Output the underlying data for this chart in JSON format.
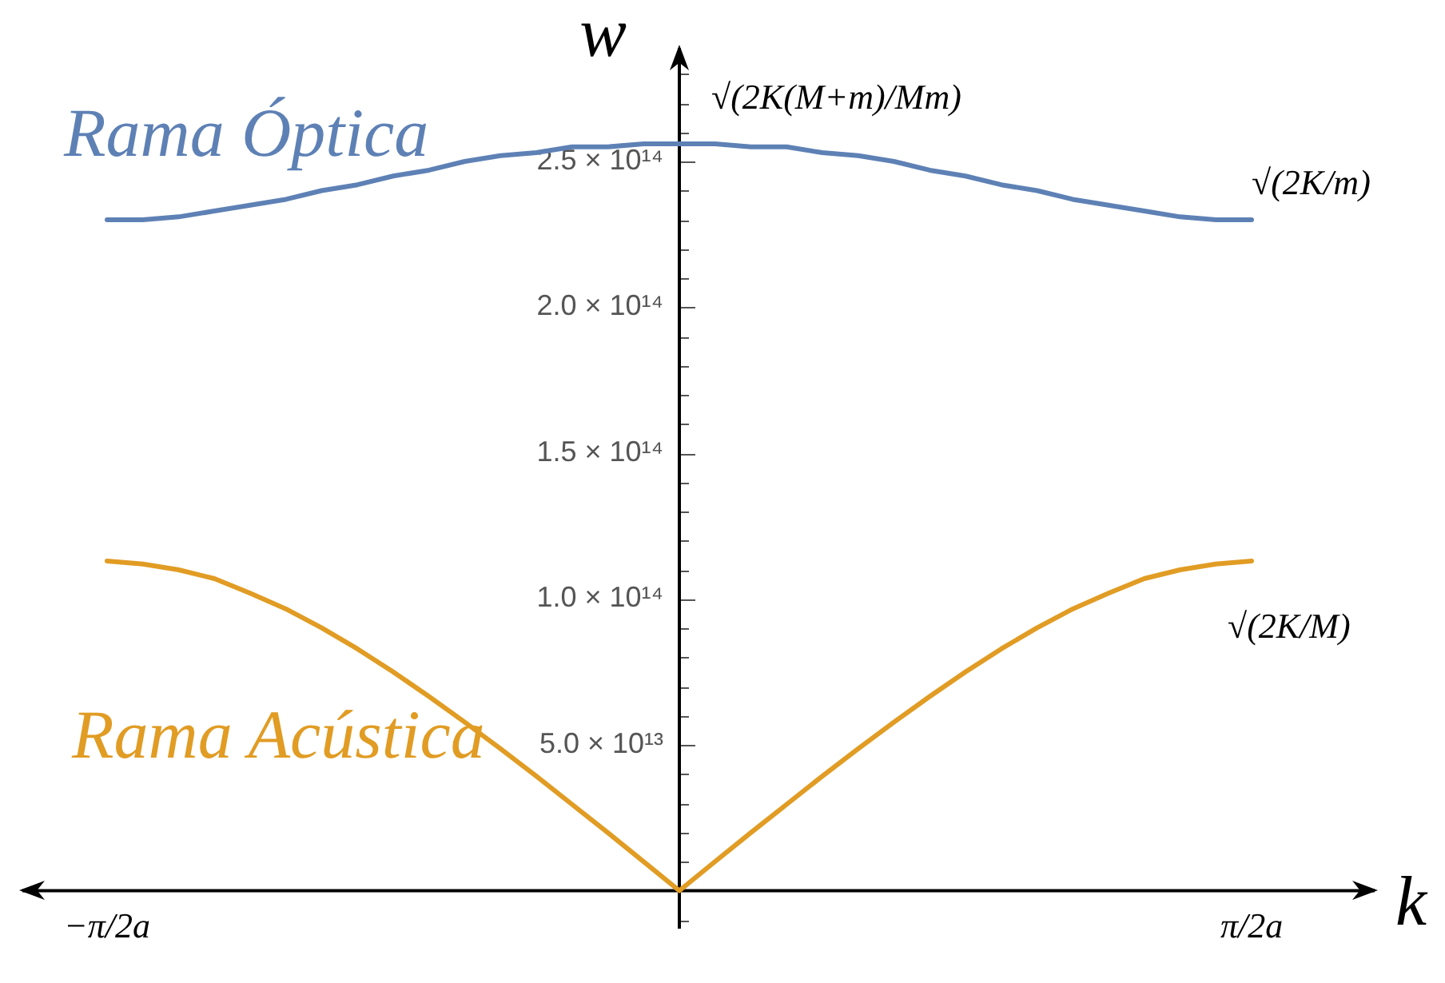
{
  "chart_data": {
    "type": "line",
    "xlabel": "k",
    "ylabel": "w",
    "categories": [
      "−π/2a",
      null,
      null,
      null,
      null,
      null,
      null,
      null,
      null,
      null,
      null,
      null,
      null,
      null,
      null,
      null,
      null,
      null,
      null,
      null,
      null,
      null,
      null,
      null,
      null,
      null,
      null,
      null,
      null,
      null,
      null,
      null,
      "π/2a"
    ],
    "series": [
      {
        "name": "Rama Óptica",
        "color": "#5e81b5",
        "values": [
          230000000000000.0,
          230000000000000.0,
          231000000000000.0,
          233000000000000.0,
          235000000000000.0,
          237000000000000.0,
          240000000000000.0,
          242000000000000.0,
          245000000000000.0,
          247000000000000.0,
          250000000000000.0,
          252000000000000.0,
          253000000000000.0,
          255000000000000.0,
          255000000000000.0,
          256000000000000.0,
          256000000000000.0,
          256000000000000.0,
          255000000000000.0,
          255000000000000.0,
          253000000000000.0,
          252000000000000.0,
          250000000000000.0,
          247000000000000.0,
          245000000000000.0,
          242000000000000.0,
          240000000000000.0,
          237000000000000.0,
          235000000000000.0,
          233000000000000.0,
          231000000000000.0,
          230000000000000.0,
          230000000000000.0
        ]
      },
      {
        "name": "Rama Acústica",
        "color": "#e19c24",
        "values": [
          113000000000000.0,
          112000000000000.0,
          110000000000000.0,
          107000000000000.0,
          102000000000000.0,
          96600000000000.0,
          90100000000000.0,
          82900000000000.0,
          75000000000000.0,
          66600000000000.0,
          57800000000000.0,
          48700000000000.0,
          39300000000000.0,
          29600000000000.0,
          19900000000000.0,
          10000000000000.0,
          0,
          10000000000000.0,
          19900000000000.0,
          29600000000000.0,
          39300000000000.0,
          48700000000000.0,
          57800000000000.0,
          66600000000000.0,
          75000000000000.0,
          82900000000000.0,
          90100000000000.0,
          96600000000000.0,
          102000000000000.0,
          107000000000000.0,
          110000000000000.0,
          112000000000000.0,
          113000000000000.0
        ]
      }
    ],
    "ylim": [
      -13000000000000.0,
      290000000000000.0
    ],
    "yticks": [
      {
        "value": 50000000000000.0,
        "label": "5.0 × 10¹³"
      },
      {
        "value": 100000000000000.0,
        "label": "1.0 × 10¹⁴"
      },
      {
        "value": 150000000000000.0,
        "label": "1.5 × 10¹⁴"
      },
      {
        "value": 200000000000000.0,
        "label": "2.0 × 10¹⁴"
      },
      {
        "value": 250000000000000.0,
        "label": "2.5 × 10¹⁴"
      }
    ],
    "annotations": [
      {
        "text": "√(2K(M+m)/Mm)",
        "y": 256000000000000.0
      },
      {
        "text": "√(2K/m)",
        "x": "π/2a",
        "y": 230000000000000.0
      },
      {
        "text": "√(2K/M)",
        "x": "π/2a",
        "y": 113000000000000.0
      }
    ]
  }
}
